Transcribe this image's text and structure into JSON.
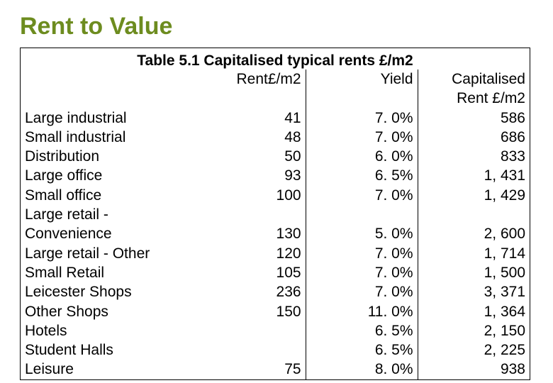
{
  "title": "Rent to Value",
  "table": {
    "caption": "Table 5.1  Capitalised typical rents £/m2",
    "columns": {
      "category": "",
      "rent": "Rent£/m2",
      "yield": "Yield",
      "cap_line1": "Capitalised",
      "cap_line2": "Rent £/m2"
    },
    "rows": [
      {
        "category": "Large industrial",
        "rent": "41",
        "yield": "7. 0%",
        "cap": "586"
      },
      {
        "category": "Small industrial",
        "rent": "48",
        "yield": "7. 0%",
        "cap": "686"
      },
      {
        "category": "Distribution",
        "rent": "50",
        "yield": "6. 0%",
        "cap": "833"
      },
      {
        "category": "Large office",
        "rent": "93",
        "yield": "6. 5%",
        "cap": "1, 431"
      },
      {
        "category": "Small office",
        "rent": "100",
        "yield": "7. 0%",
        "cap": "1, 429"
      },
      {
        "category": "Large retail -",
        "rent": "",
        "yield": "",
        "cap": ""
      },
      {
        "category": "Convenience",
        "rent": "130",
        "yield": "5. 0%",
        "cap": "2, 600"
      },
      {
        "category": "Large retail - Other",
        "rent": "120",
        "yield": "7. 0%",
        "cap": "1, 714"
      },
      {
        "category": "Small Retail",
        "rent": "105",
        "yield": "7. 0%",
        "cap": "1, 500"
      },
      {
        "category": "Leicester Shops",
        "rent": "236",
        "yield": "7. 0%",
        "cap": "3, 371"
      },
      {
        "category": "Other Shops",
        "rent": "150",
        "yield": "11. 0%",
        "cap": "1, 364"
      },
      {
        "category": "Hotels",
        "rent": "",
        "yield": "6. 5%",
        "cap": "2, 150"
      },
      {
        "category": "Student Halls",
        "rent": "",
        "yield": "6. 5%",
        "cap": "2, 225"
      },
      {
        "category": "Leisure",
        "rent": "75",
        "yield": "8. 0%",
        "cap": "938"
      }
    ],
    "colors": {
      "title": "#6d8c1f",
      "text": "#000000",
      "border": "#000000",
      "background": "#ffffff"
    },
    "typography": {
      "title_fontsize": 34,
      "body_fontsize": 21,
      "font_family": "Arial"
    },
    "layout": {
      "col_widths_pct": [
        38,
        18,
        22,
        22
      ],
      "align": [
        "left",
        "right",
        "right",
        "right"
      ]
    }
  }
}
